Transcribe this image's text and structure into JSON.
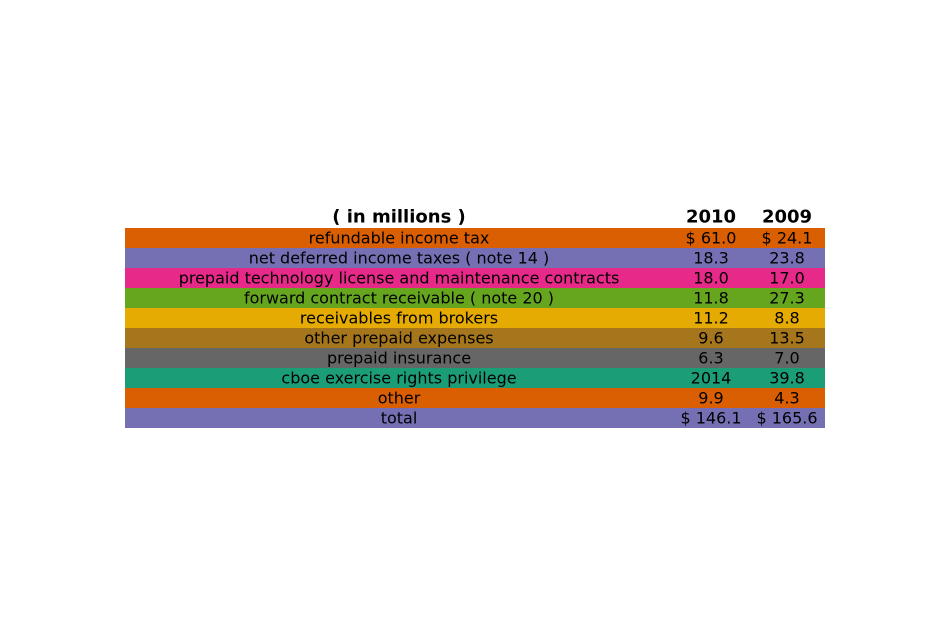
{
  "chart_data": {
    "type": "table",
    "columns": [
      "( in millions )",
      "2010",
      "2009"
    ],
    "rows": [
      {
        "label": "refundable income tax",
        "values": [
          "$ 61.0",
          "$ 24.1"
        ],
        "color": "#d95f02"
      },
      {
        "label": "net deferred income taxes ( note 14 )",
        "values": [
          "18.3",
          "23.8"
        ],
        "color": "#7570b3"
      },
      {
        "label": "prepaid technology license and maintenance contracts",
        "values": [
          "18.0",
          "17.0"
        ],
        "color": "#e7298a"
      },
      {
        "label": "forward contract receivable ( note 20 )",
        "values": [
          "11.8",
          "27.3"
        ],
        "color": "#66a61e"
      },
      {
        "label": "receivables from brokers",
        "values": [
          "11.2",
          "8.8"
        ],
        "color": "#e6ab02"
      },
      {
        "label": "other prepaid expenses",
        "values": [
          "9.6",
          "13.5"
        ],
        "color": "#a6761d"
      },
      {
        "label": "prepaid insurance",
        "values": [
          "6.3",
          "7.0"
        ],
        "color": "#666666"
      },
      {
        "label": "cboe exercise rights privilege",
        "values": [
          "2014",
          "39.8"
        ],
        "color": "#1b9e77"
      },
      {
        "label": "other",
        "values": [
          "9.9",
          "4.3"
        ],
        "color": "#d95f02"
      },
      {
        "label": "total",
        "values": [
          "$ 146.1",
          "$ 165.6"
        ],
        "color": "#7570b3"
      }
    ]
  }
}
